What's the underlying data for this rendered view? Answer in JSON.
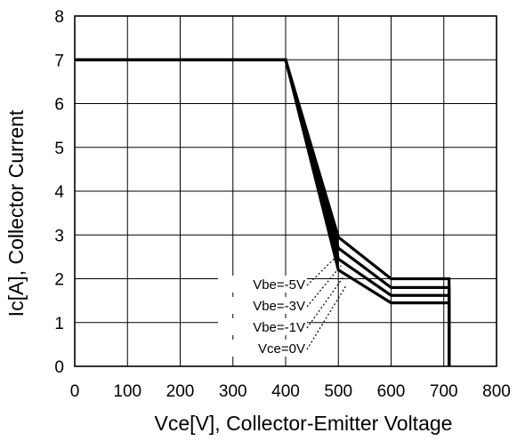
{
  "chart_data": {
    "type": "line",
    "xlabel": "Vce[V], Collector-Emitter Voltage",
    "ylabel": "Ic[A], Collector Current",
    "xlim": [
      0,
      800
    ],
    "ylim": [
      0,
      8
    ],
    "x_ticks": [
      "0",
      "100",
      "200",
      "300",
      "400",
      "500",
      "600",
      "700",
      "800"
    ],
    "y_ticks": [
      "0",
      "1",
      "2",
      "3",
      "4",
      "5",
      "6",
      "7",
      "8"
    ],
    "grid": true,
    "series": [
      {
        "name": "Vbe=-5V",
        "x": [
          0,
          400,
          500,
          600,
          710,
          710
        ],
        "y": [
          7,
          7,
          2.95,
          2.0,
          2.0,
          0
        ]
      },
      {
        "name": "Vbe=-3V",
        "x": [
          0,
          400,
          500,
          600,
          710,
          710
        ],
        "y": [
          7,
          7,
          2.7,
          1.8,
          1.8,
          0
        ]
      },
      {
        "name": "Vbe=-1V",
        "x": [
          0,
          400,
          500,
          600,
          710,
          710
        ],
        "y": [
          7,
          7,
          2.45,
          1.62,
          1.62,
          0
        ]
      },
      {
        "name": "Vce=0V",
        "x": [
          0,
          400,
          500,
          600,
          710,
          710
        ],
        "y": [
          7,
          7,
          2.2,
          1.45,
          1.45,
          0
        ]
      }
    ],
    "annotations": [
      "Vbe=-5V",
      "Vbe=-3V",
      "Vbe=-1V",
      "Vce=0V"
    ]
  }
}
